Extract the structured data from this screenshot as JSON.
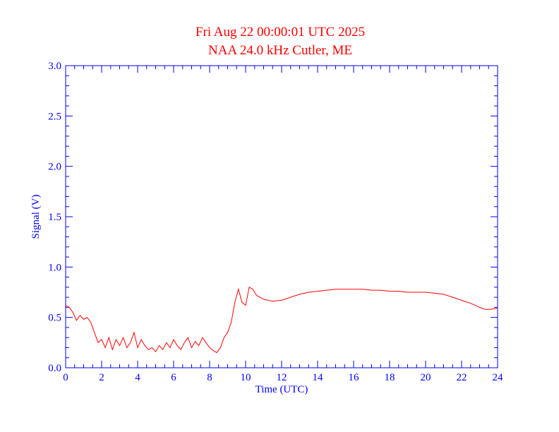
{
  "colors": {
    "title": "#ff0000",
    "axis": "#0000ff",
    "series": "#ff0000",
    "background": "#ffffff"
  },
  "chart_data": {
    "type": "line",
    "title": "Fri Aug 22 00:00:01 UTC 2025",
    "subtitle": "NAA 24.0 kHz Cutler, ME",
    "xlabel": "Time (UTC)",
    "ylabel": "Signal (V)",
    "xlim": [
      0,
      24
    ],
    "ylim": [
      0,
      3.0
    ],
    "xticks": [
      "0",
      "2",
      "4",
      "6",
      "8",
      "10",
      "12",
      "14",
      "16",
      "18",
      "20",
      "22",
      "24"
    ],
    "yticks": [
      "0.0",
      "0.5",
      "1.0",
      "1.5",
      "2.0",
      "2.5",
      "3.0"
    ],
    "grid": false,
    "series": [
      {
        "color": "#ff0000",
        "x": [
          0,
          0.2,
          0.4,
          0.6,
          0.8,
          1.0,
          1.2,
          1.4,
          1.6,
          1.8,
          2.0,
          2.2,
          2.4,
          2.6,
          2.8,
          3.0,
          3.2,
          3.4,
          3.6,
          3.8,
          4.0,
          4.2,
          4.4,
          4.6,
          4.8,
          5.0,
          5.2,
          5.4,
          5.6,
          5.8,
          6.0,
          6.2,
          6.4,
          6.6,
          6.8,
          7.0,
          7.2,
          7.4,
          7.6,
          7.8,
          8.0,
          8.2,
          8.4,
          8.6,
          8.8,
          9.0,
          9.2,
          9.4,
          9.6,
          9.8,
          10.0,
          10.2,
          10.4,
          10.6,
          10.8,
          11.0,
          11.5,
          12.0,
          12.5,
          13.0,
          13.5,
          14.0,
          14.5,
          15.0,
          15.5,
          16.0,
          16.5,
          17.0,
          17.5,
          18.0,
          18.5,
          19.0,
          19.5,
          20.0,
          20.5,
          21.0,
          21.5,
          22.0,
          22.5,
          23.0,
          23.3,
          23.6,
          24.0
        ],
        "values": [
          0.62,
          0.6,
          0.55,
          0.47,
          0.52,
          0.48,
          0.5,
          0.45,
          0.35,
          0.25,
          0.28,
          0.2,
          0.3,
          0.18,
          0.28,
          0.22,
          0.3,
          0.2,
          0.25,
          0.35,
          0.2,
          0.28,
          0.22,
          0.18,
          0.2,
          0.16,
          0.22,
          0.18,
          0.25,
          0.2,
          0.28,
          0.22,
          0.18,
          0.25,
          0.3,
          0.2,
          0.26,
          0.22,
          0.3,
          0.25,
          0.2,
          0.17,
          0.15,
          0.2,
          0.3,
          0.35,
          0.45,
          0.65,
          0.78,
          0.65,
          0.62,
          0.8,
          0.78,
          0.72,
          0.7,
          0.68,
          0.66,
          0.67,
          0.7,
          0.73,
          0.75,
          0.76,
          0.77,
          0.78,
          0.78,
          0.78,
          0.78,
          0.77,
          0.77,
          0.76,
          0.76,
          0.75,
          0.75,
          0.75,
          0.74,
          0.73,
          0.7,
          0.67,
          0.64,
          0.6,
          0.58,
          0.58,
          0.59
        ]
      }
    ]
  }
}
